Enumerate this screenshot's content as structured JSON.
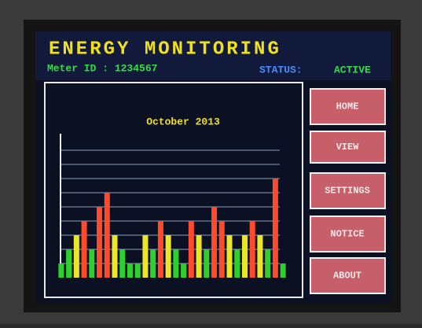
{
  "header": {
    "title": "ENERGY MONITORING",
    "meter": "Meter ID : 1234567",
    "status_label": "STATUS:",
    "status_value": "ACTIVE"
  },
  "buttons": [
    "HOME",
    "VIEW",
    "SETTINGS",
    "NOTICE",
    "ABOUT"
  ],
  "chart_data": {
    "type": "bar",
    "title": "October 2013",
    "values": [
      1,
      2,
      3,
      4,
      2,
      5,
      6,
      3,
      2,
      1,
      1,
      3,
      2,
      4,
      3,
      2,
      1,
      4,
      3,
      2,
      5,
      4,
      3,
      2,
      3,
      4,
      3,
      2,
      7,
      1
    ],
    "ylim": [
      0,
      9
    ],
    "yticks": [
      1,
      2,
      3,
      4,
      5,
      6,
      7,
      8,
      9
    ],
    "grid": true,
    "colors": {
      "low": "#2fcf2f",
      "mid": "#ece62a",
      "high": "#ff4b2b"
    },
    "thresholds": [
      3,
      4
    ]
  }
}
